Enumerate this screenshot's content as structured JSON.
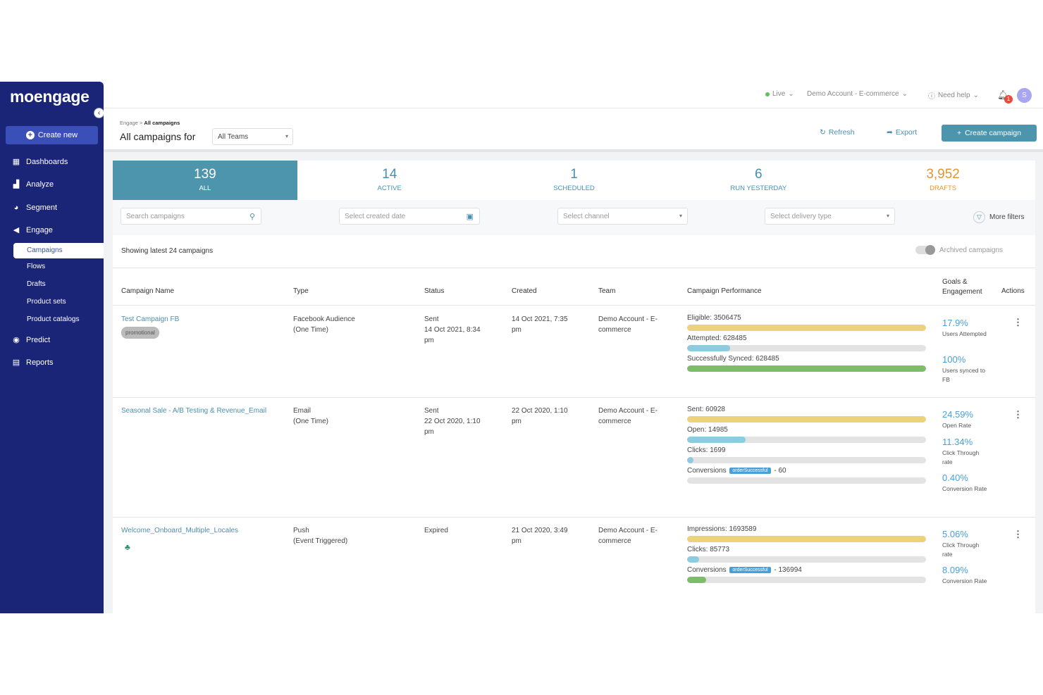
{
  "sidebar": {
    "logo": "moengage",
    "create_new": "Create new",
    "items": [
      {
        "label": "Dashboards",
        "icon": "dashboard-icon"
      },
      {
        "label": "Analyze",
        "icon": "chart-icon"
      },
      {
        "label": "Segment",
        "icon": "pie-icon"
      },
      {
        "label": "Engage",
        "icon": "megaphone-icon"
      }
    ],
    "sub_items": [
      "Campaigns",
      "Flows",
      "Drafts",
      "Product sets",
      "Product catalogs"
    ],
    "bottom_items": [
      {
        "label": "Predict",
        "icon": "brain-icon"
      },
      {
        "label": "Reports",
        "icon": "report-icon"
      }
    ]
  },
  "topbar": {
    "env": "Live",
    "account": "Demo Account - E-commerce",
    "help": "Need help",
    "notif_count": "1",
    "avatar": "S"
  },
  "header": {
    "crumb_parent": "Engage",
    "crumb_current": "All campaigns",
    "title": "All campaigns for",
    "team_select": "All Teams",
    "refresh": "Refresh",
    "export": "Export",
    "create_campaign": "Create campaign"
  },
  "stats": [
    {
      "num": "139",
      "label": "ALL"
    },
    {
      "num": "14",
      "label": "ACTIVE"
    },
    {
      "num": "1",
      "label": "SCHEDULED"
    },
    {
      "num": "6",
      "label": "RUN YESTERDAY"
    },
    {
      "num": "3,952",
      "label": "DRAFTS"
    }
  ],
  "filters": {
    "search": "Search campaigns",
    "created_date": "Select created date",
    "channel": "Select channel",
    "delivery_type": "Select delivery type",
    "more": "More filters"
  },
  "list": {
    "showing": "Showing latest 24 campaigns",
    "archived": "Archived campaigns"
  },
  "columns": [
    "Campaign Name",
    "Type",
    "Status",
    "Created",
    "Team",
    "Campaign Performance",
    "Goals & Engagement",
    "Actions"
  ],
  "campaigns": [
    {
      "name": "Test Campaign FB",
      "tag": "promotional",
      "type1": "Facebook Audience",
      "type2": "(One Time)",
      "status1": "Sent",
      "status2": "14 Oct 2021, 8:34",
      "status3": "pm",
      "created1": "14 Oct 2021, 7:35",
      "created2": "pm",
      "team1": "Demo Account - E-",
      "team2": "commerce",
      "perf": [
        {
          "label": "Eligible: 3506475",
          "fill": 1.0,
          "color": "#ecd27a"
        },
        {
          "label": "Attempted: 628485",
          "fill": 0.18,
          "color": "#8dcbe0"
        },
        {
          "label": "Successfully Synced: 628485",
          "fill": 1.0,
          "color": "#7dbd6a"
        }
      ],
      "goals": [
        {
          "value": "17.9%",
          "label": "Users Attempted"
        },
        {
          "value": "100%",
          "label": "Users synced to FB"
        }
      ]
    },
    {
      "name": "Seasonal Sale - A/B Testing & Revenue_Email",
      "type1": "Email",
      "type2": "(One Time)",
      "status1": "Sent",
      "status2": "22 Oct 2020, 1:10",
      "status3": "pm",
      "created1": "22 Oct 2020, 1:10",
      "created2": "pm",
      "team1": "Demo Account - E-",
      "team2": "commerce",
      "perf": [
        {
          "label": "Sent: 60928",
          "fill": 1.0,
          "color": "#ecd27a"
        },
        {
          "label": "Open: 14985",
          "fill": 0.246,
          "color": "#8dcbe0"
        },
        {
          "label": "Clicks: 1699",
          "fill": 0.028,
          "color": "#8dcbe0"
        },
        {
          "label_pre": "Conversions",
          "chip": "orderSuccessful",
          "label_post": "- 60",
          "fill": 0.0,
          "color": "#7dbd6a"
        }
      ],
      "goals": [
        {
          "value": "24.59%",
          "label": "Open Rate"
        },
        {
          "value": "11.34%",
          "label": "Click Through rate"
        },
        {
          "value": "0.40%",
          "label": "Conversion Rate"
        }
      ]
    },
    {
      "name": "Welcome_Onboard_Multiple_Locales",
      "type1": "Push",
      "type2": "(Event Triggered)",
      "status1": "Expired",
      "created1": "21 Oct 2020, 3:49",
      "created2": "pm",
      "team1": "Demo Account - E-",
      "team2": "commerce",
      "perf": [
        {
          "label": "Impressions: 1693589",
          "fill": 1.0,
          "color": "#ecd27a"
        },
        {
          "label": "Clicks: 85773",
          "fill": 0.05,
          "color": "#8dcbe0"
        },
        {
          "label_pre": "Conversions",
          "chip": "orderSuccessful",
          "label_post": "- 136994",
          "fill": 0.08,
          "color": "#7dbd6a"
        }
      ],
      "goals": [
        {
          "value": "5.06%",
          "label": "Click Through rate"
        },
        {
          "value": "8.09%",
          "label": "Conversion Rate"
        }
      ]
    }
  ]
}
